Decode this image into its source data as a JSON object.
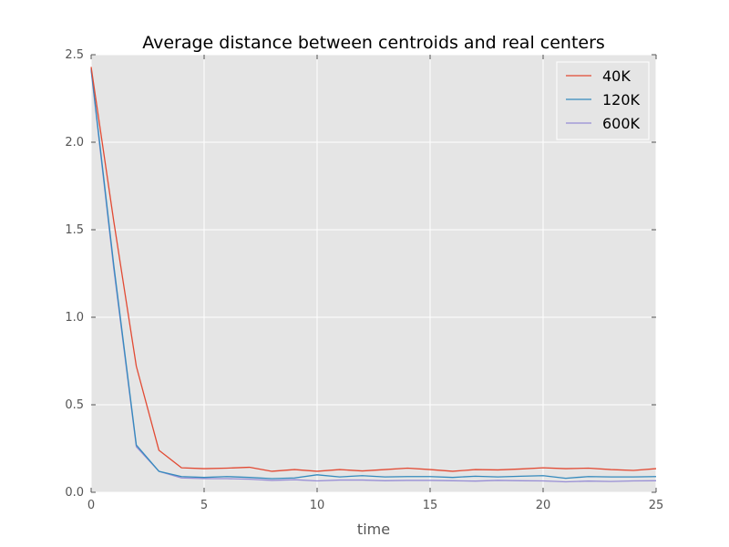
{
  "chart_data": {
    "type": "line",
    "title": "Average distance between centroids and real centers",
    "xlabel": "time",
    "ylabel": "",
    "xlim": [
      0,
      25
    ],
    "ylim": [
      0.0,
      2.5
    ],
    "xticks": [
      "0",
      "5",
      "10",
      "15",
      "20",
      "25"
    ],
    "yticks": [
      "0.0",
      "0.5",
      "1.0",
      "1.5",
      "2.0",
      "2.5"
    ],
    "grid": true,
    "legend_position": "top-right",
    "x": [
      0,
      1,
      2,
      3,
      4,
      5,
      6,
      7,
      8,
      9,
      10,
      11,
      12,
      13,
      14,
      15,
      16,
      17,
      18,
      19,
      20,
      21,
      22,
      23,
      24,
      25
    ],
    "series": [
      {
        "name": "40K",
        "color": "#e24a33",
        "values": [
          2.43,
          1.55,
          0.72,
          0.24,
          0.14,
          0.135,
          0.138,
          0.143,
          0.12,
          0.13,
          0.12,
          0.13,
          0.122,
          0.13,
          0.138,
          0.13,
          0.12,
          0.13,
          0.128,
          0.133,
          0.14,
          0.135,
          0.138,
          0.13,
          0.125,
          0.135
        ]
      },
      {
        "name": "120K",
        "color": "#348abd",
        "values": [
          2.42,
          1.3,
          0.27,
          0.12,
          0.09,
          0.085,
          0.09,
          0.085,
          0.078,
          0.082,
          0.1,
          0.088,
          0.095,
          0.088,
          0.09,
          0.09,
          0.085,
          0.092,
          0.088,
          0.092,
          0.095,
          0.08,
          0.09,
          0.088,
          0.088,
          0.09
        ]
      },
      {
        "name": "600K",
        "color": "#988ed5",
        "values": [
          2.41,
          1.28,
          0.26,
          0.12,
          0.082,
          0.078,
          0.078,
          0.075,
          0.068,
          0.072,
          0.065,
          0.07,
          0.07,
          0.066,
          0.068,
          0.068,
          0.066,
          0.064,
          0.068,
          0.066,
          0.065,
          0.06,
          0.064,
          0.062,
          0.065,
          0.066
        ]
      }
    ]
  }
}
